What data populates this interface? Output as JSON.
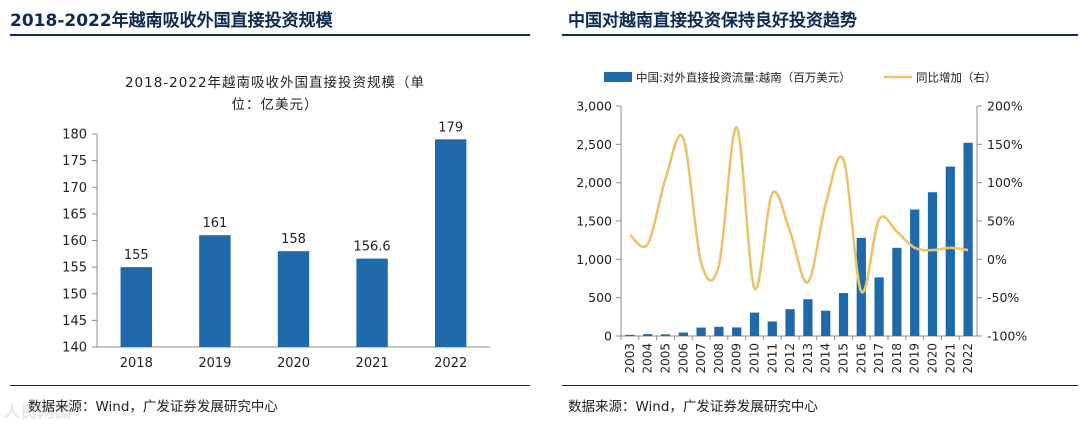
{
  "left": {
    "panel_title": "2018-2022年越南吸收外国直接投资规模",
    "source": "数据来源：Wind，广发证券发展研究中心",
    "watermark": "人民网国",
    "chart_data": {
      "type": "bar",
      "title_line1": "2018-2022年越南吸收外国直接投资规模（单",
      "title_line2": "位：亿美元）",
      "categories": [
        "2018",
        "2019",
        "2020",
        "2021",
        "2022"
      ],
      "values": [
        155,
        161,
        158,
        156.6,
        179
      ],
      "value_labels": [
        "155",
        "161",
        "158",
        "156.6",
        "179"
      ],
      "ylim": [
        140,
        180
      ],
      "yticks": [
        140,
        145,
        150,
        155,
        160,
        165,
        170,
        175,
        180
      ],
      "bar_color": "#1f6aaa"
    }
  },
  "right": {
    "panel_title": "中国对越南直接投资保持良好投资趋势",
    "source": "数据来源：Wind，广发证券发展研究中心",
    "chart_data": {
      "type": "bar+line",
      "categories": [
        "2003",
        "2004",
        "2005",
        "2006",
        "2007",
        "2008",
        "2009",
        "2010",
        "2011",
        "2012",
        "2013",
        "2014",
        "2015",
        "2016",
        "2017",
        "2018",
        "2019",
        "2020",
        "2021",
        "2022"
      ],
      "series": [
        {
          "name": "中国:对外直接投资流量:越南（百万美元）",
          "type": "bar",
          "axis": "left",
          "color": "#1f6aaa",
          "values": [
            15,
            25,
            22,
            45,
            110,
            120,
            112,
            305,
            190,
            350,
            480,
            330,
            560,
            1280,
            765,
            1150,
            1650,
            1875,
            2210,
            2520
          ]
        },
        {
          "name": "同比增加（右）",
          "type": "line",
          "axis": "right",
          "color": "#e8c46a",
          "values": [
            0.32,
            0.2,
            1.05,
            1.58,
            -0.04,
            -0.08,
            1.72,
            -0.38,
            0.86,
            0.36,
            -0.3,
            0.72,
            1.3,
            -0.42,
            0.52,
            0.36,
            0.15,
            0.12,
            0.15,
            0.12
          ]
        }
      ],
      "ylim_left": [
        0,
        3000
      ],
      "yticks_left": [
        "0",
        "500",
        "1,000",
        "1,500",
        "2,000",
        "2,500",
        "3,000"
      ],
      "ylim_right": [
        -1.0,
        2.0
      ],
      "yticks_right": [
        "-100%",
        "-50%",
        "0%",
        "50%",
        "100%",
        "150%",
        "200%"
      ],
      "legend_position": "top"
    }
  }
}
